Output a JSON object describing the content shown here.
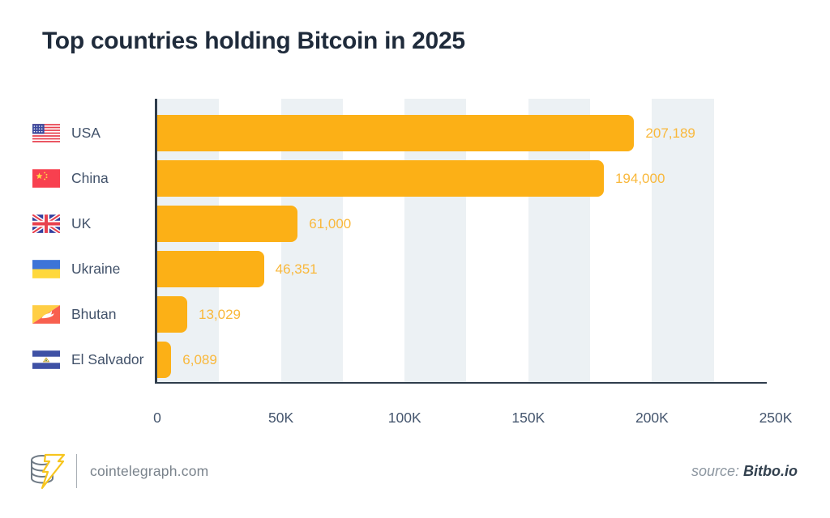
{
  "title": "Top countries holding Bitcoin in 2025",
  "chart_data": {
    "type": "bar",
    "orientation": "horizontal",
    "title": "Top countries holding Bitcoin in 2025",
    "categories": [
      "USA",
      "China",
      "UK",
      "Ukraine",
      "Bhutan",
      "El Salvador"
    ],
    "values": [
      207189,
      194000,
      61000,
      46351,
      13029,
      6089
    ],
    "value_labels": [
      "207,189",
      "194,000",
      "61,000",
      "46,351",
      "13,029",
      "6,089"
    ],
    "flags": [
      "usa-flag",
      "china-flag",
      "uk-flag",
      "ukraine-flag",
      "bhutan-flag",
      "el-salvador-flag"
    ],
    "xlabel": "",
    "ylabel": "",
    "xlim": [
      0,
      250000
    ],
    "x_tick_labels": [
      "0",
      "50K",
      "100K",
      "150K",
      "200K",
      "250K"
    ],
    "x_tick_values": [
      0,
      50000,
      100000,
      150000,
      200000,
      250000
    ],
    "legend": "none",
    "grid": "alternating 25K-wide vertical background bands starting at each 50K tick",
    "bar_color": "#FCB016",
    "value_label_color": "#F9B83B",
    "band_color": "#ECF1F4",
    "axis_color": "#2F3D4C"
  },
  "footer": {
    "logo": "cointelegraph-coin-lightning-logo",
    "brand": "cointelegraph.com",
    "source_prefix": "source: ",
    "source_name": "Bitbo.io"
  },
  "colors": {
    "background": "#FFFFFF",
    "title_text": "#1F2B3B",
    "category_text": "#42526A",
    "tick_text": "#45566E",
    "brand_text": "#7A838C",
    "source_text": "#8C96A0",
    "source_name_text": "#33414F",
    "logo_yellow": "#F7C51E",
    "logo_gray": "#6F7A85"
  }
}
